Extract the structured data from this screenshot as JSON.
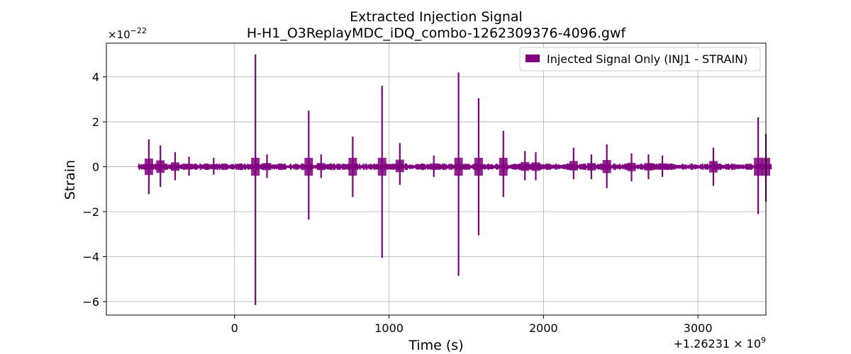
{
  "chart_data": {
    "type": "line",
    "title": "Extracted Injection Signal",
    "subtitle": "H-H1_O3ReplayMDC_iDQ_combo-1262309376-4096.gwf",
    "xlabel": "Time (s)",
    "ylabel": "Strain",
    "x_offset_label": "+1.26231 × 10",
    "x_offset_exponent": "9",
    "y_multiplier_label": "×10",
    "y_multiplier_exponent": "−22",
    "xlim": [
      -830,
      3440
    ],
    "ylim": [
      -6.6,
      5.5
    ],
    "xticks": [
      0,
      1000,
      2000,
      3000
    ],
    "xtick_labels": [
      "0",
      "1000",
      "2000",
      "3000"
    ],
    "yticks": [
      -6,
      -4,
      -2,
      0,
      2,
      4
    ],
    "ytick_labels": [
      "−6",
      "−4",
      "−2",
      "0",
      "2",
      "4"
    ],
    "grid": true,
    "legend_position": "top-right",
    "color": "#800080",
    "series": [
      {
        "name": "Injected Signal Only (INJ1 - STRAIN)",
        "x_range": [
          -624,
          3472
        ],
        "baseline_noise": 0.12,
        "spikes": [
          {
            "x": -555,
            "y_max": 1.22,
            "y_min": -1.22
          },
          {
            "x": -480,
            "y_max": 0.95,
            "y_min": -0.9
          },
          {
            "x": -385,
            "y_max": 0.65,
            "y_min": -0.6
          },
          {
            "x": -295,
            "y_max": 0.45,
            "y_min": -0.4
          },
          {
            "x": -135,
            "y_max": 0.4,
            "y_min": -0.35
          },
          {
            "x": 135,
            "y_max": 5.0,
            "y_min": -6.15
          },
          {
            "x": 210,
            "y_max": 0.55,
            "y_min": -0.5
          },
          {
            "x": 480,
            "y_max": 2.5,
            "y_min": -2.35
          },
          {
            "x": 560,
            "y_max": 0.55,
            "y_min": -0.5
          },
          {
            "x": 765,
            "y_max": 1.35,
            "y_min": -1.35
          },
          {
            "x": 955,
            "y_max": 3.6,
            "y_min": -4.05
          },
          {
            "x": 1070,
            "y_max": 1.05,
            "y_min": -0.8
          },
          {
            "x": 1290,
            "y_max": 0.5,
            "y_min": -0.45
          },
          {
            "x": 1450,
            "y_max": 4.2,
            "y_min": -4.85
          },
          {
            "x": 1580,
            "y_max": 3.05,
            "y_min": -3.05
          },
          {
            "x": 1740,
            "y_max": 1.6,
            "y_min": -1.35
          },
          {
            "x": 1880,
            "y_max": 0.7,
            "y_min": -0.6
          },
          {
            "x": 1950,
            "y_max": 0.65,
            "y_min": -0.6
          },
          {
            "x": 2195,
            "y_max": 0.85,
            "y_min": -0.55
          },
          {
            "x": 2310,
            "y_max": 0.55,
            "y_min": -0.55
          },
          {
            "x": 2410,
            "y_max": 1.0,
            "y_min": -0.95
          },
          {
            "x": 2570,
            "y_max": 0.6,
            "y_min": -0.65
          },
          {
            "x": 2680,
            "y_max": 0.55,
            "y_min": -0.55
          },
          {
            "x": 2770,
            "y_max": 0.5,
            "y_min": -0.45
          },
          {
            "x": 3100,
            "y_max": 0.85,
            "y_min": -0.85
          },
          {
            "x": 3390,
            "y_max": 2.2,
            "y_min": -2.1
          },
          {
            "x": 3440,
            "y_max": 1.45,
            "y_min": -1.55
          }
        ]
      }
    ]
  }
}
